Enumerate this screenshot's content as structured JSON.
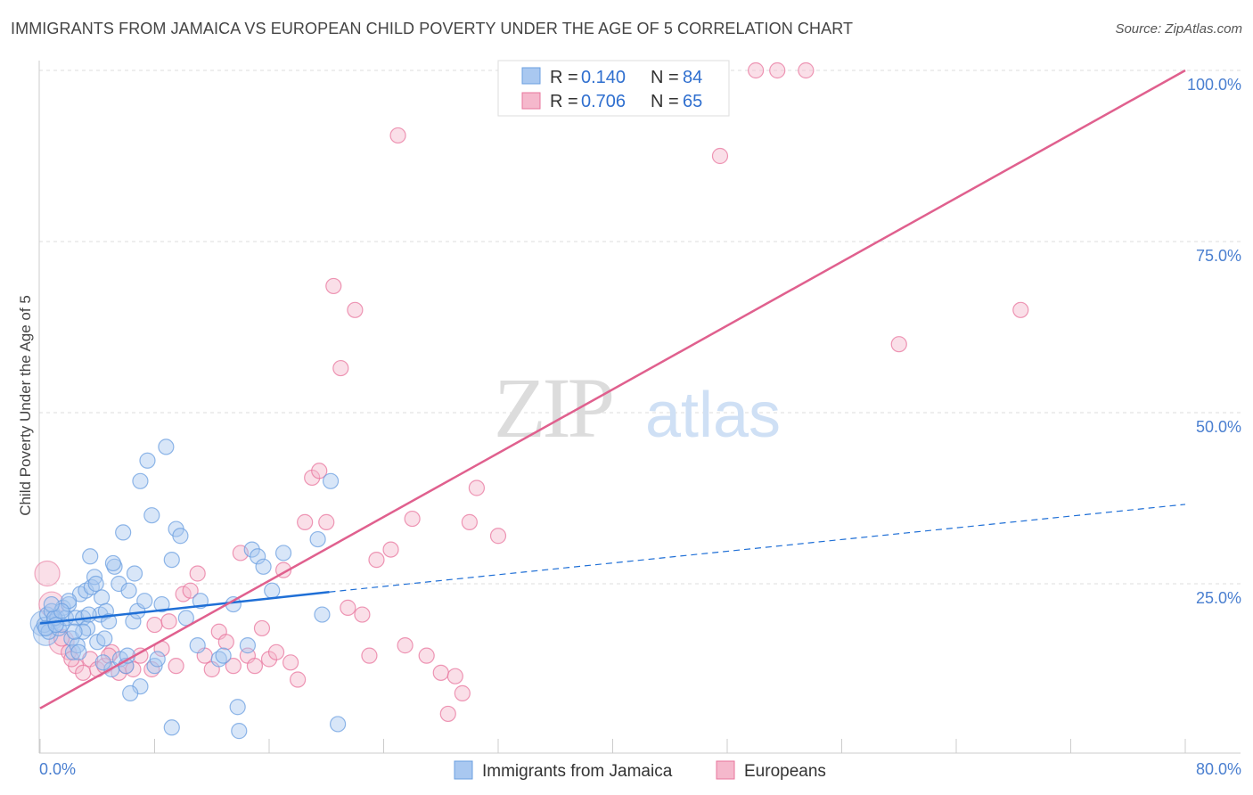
{
  "title": "IMMIGRANTS FROM JAMAICA VS EUROPEAN CHILD POVERTY UNDER THE AGE OF 5 CORRELATION CHART",
  "source": "Source: ZipAtlas.com",
  "watermark": {
    "zip": "ZIP",
    "atlas": "atlas"
  },
  "colors": {
    "blue": "#6b9fe0",
    "blue_fill": "#a9c8f0",
    "pink": "#e8769d",
    "pink_fill": "#f5b8cc",
    "blue_line": "#1f6fd6",
    "pink_line": "#e0608e",
    "axis_text": "#4a7fd0"
  },
  "legend": {
    "series": [
      {
        "r_label": "R =",
        "r_value": "0.140",
        "n_label": "N =",
        "n_value": "84"
      },
      {
        "r_label": "R =",
        "r_value": "0.706",
        "n_label": "N =",
        "n_value": "65"
      }
    ]
  },
  "chart_data": {
    "type": "scatter",
    "xlabel": "",
    "ylabel": "Child Poverty Under the Age of 5",
    "xlim": [
      0,
      80
    ],
    "ylim": [
      0,
      102
    ],
    "x_tick_labels": [
      "0.0%",
      "80.0%"
    ],
    "y_tick_labels": [
      "25.0%",
      "50.0%",
      "75.0%",
      "100.0%"
    ],
    "y_ticks": [
      25,
      50,
      75,
      100
    ],
    "series": [
      {
        "name": "Immigrants from Jamaica",
        "color": "blue",
        "trend": {
          "x0": 0,
          "y0": 19.2,
          "x1": 20.2,
          "y1": 23.8,
          "dash_to_x": 80,
          "dash_to_y": 36.6
        },
        "points": [
          [
            0.3,
            19
          ],
          [
            0.5,
            20.5
          ],
          [
            0.6,
            18
          ],
          [
            0.8,
            21
          ],
          [
            1,
            19.5
          ],
          [
            1.2,
            20
          ],
          [
            1.3,
            18.5
          ],
          [
            1.5,
            19
          ],
          [
            1.6,
            21.5
          ],
          [
            1.8,
            20
          ],
          [
            2,
            22
          ],
          [
            2.2,
            17
          ],
          [
            2.3,
            15
          ],
          [
            2.5,
            20
          ],
          [
            2.6,
            16
          ],
          [
            2.8,
            23.5
          ],
          [
            3,
            20
          ],
          [
            3.2,
            24
          ],
          [
            3.3,
            18.5
          ],
          [
            3.5,
            29
          ],
          [
            3.6,
            24.5
          ],
          [
            3.8,
            26
          ],
          [
            4,
            16.5
          ],
          [
            4.2,
            20.5
          ],
          [
            4.3,
            23
          ],
          [
            4.5,
            17
          ],
          [
            4.6,
            21
          ],
          [
            4.8,
            19.5
          ],
          [
            5,
            12.5
          ],
          [
            5.2,
            27.5
          ],
          [
            5.5,
            25
          ],
          [
            5.6,
            14
          ],
          [
            5.8,
            32.5
          ],
          [
            6,
            13
          ],
          [
            6.2,
            24
          ],
          [
            6.5,
            19.5
          ],
          [
            6.6,
            26.5
          ],
          [
            6.8,
            21
          ],
          [
            7,
            40
          ],
          [
            7.3,
            22.5
          ],
          [
            7.5,
            43
          ],
          [
            7.8,
            35
          ],
          [
            8,
            13
          ],
          [
            8.2,
            14
          ],
          [
            8.5,
            22
          ],
          [
            8.8,
            45
          ],
          [
            9.2,
            28.5
          ],
          [
            9.5,
            33
          ],
          [
            9.8,
            32
          ],
          [
            10.2,
            20
          ],
          [
            11,
            16
          ],
          [
            11.2,
            22.5
          ],
          [
            12.5,
            14
          ],
          [
            12.8,
            14.5
          ],
          [
            13.5,
            22
          ],
          [
            13.8,
            7
          ],
          [
            14.5,
            16
          ],
          [
            14.8,
            30
          ],
          [
            15.2,
            29
          ],
          [
            15.6,
            27.5
          ],
          [
            16.2,
            24
          ],
          [
            17,
            29.5
          ],
          [
            19.4,
            31.5
          ],
          [
            19.7,
            20.5
          ],
          [
            20.3,
            40
          ],
          [
            20.8,
            4.5
          ],
          [
            9.2,
            4
          ],
          [
            13.9,
            3.5
          ],
          [
            7,
            10
          ],
          [
            6.3,
            9
          ],
          [
            1,
            20
          ],
          [
            2,
            22.5
          ],
          [
            3,
            18
          ],
          [
            0.4,
            18.5
          ],
          [
            1.5,
            21
          ],
          [
            2.7,
            15
          ],
          [
            3.9,
            25
          ],
          [
            5.1,
            28
          ],
          [
            4.4,
            13.5
          ],
          [
            6.1,
            14.5
          ],
          [
            0.8,
            22
          ],
          [
            1.1,
            19
          ],
          [
            2.4,
            18
          ],
          [
            3.4,
            20.5
          ]
        ],
        "large_points": [
          [
            0.2,
            19.2
          ],
          [
            0.4,
            17.8
          ]
        ]
      },
      {
        "name": "Europeans",
        "color": "pink",
        "trend": {
          "x0": 0,
          "y0": 6.8,
          "x1": 80,
          "y1": 100
        },
        "points": [
          [
            1.5,
            17
          ],
          [
            2,
            15
          ],
          [
            2.5,
            13
          ],
          [
            3,
            12
          ],
          [
            3.5,
            14
          ],
          [
            4,
            12.5
          ],
          [
            4.5,
            13
          ],
          [
            5,
            15
          ],
          [
            5.5,
            12
          ],
          [
            6,
            13
          ],
          [
            6.5,
            12.5
          ],
          [
            7,
            14.5
          ],
          [
            8,
            19
          ],
          [
            8.5,
            15.5
          ],
          [
            9,
            19.5
          ],
          [
            9.5,
            13
          ],
          [
            10,
            23.5
          ],
          [
            10.5,
            24
          ],
          [
            11,
            26.5
          ],
          [
            12,
            12.5
          ],
          [
            12.5,
            18
          ],
          [
            13,
            16.5
          ],
          [
            13.5,
            13
          ],
          [
            14,
            29.5
          ],
          [
            14.5,
            14.5
          ],
          [
            15,
            13
          ],
          [
            15.5,
            18.5
          ],
          [
            16,
            14
          ],
          [
            16.5,
            15
          ],
          [
            17,
            27
          ],
          [
            17.5,
            13.5
          ],
          [
            18,
            11
          ],
          [
            18.5,
            34
          ],
          [
            19,
            40.5
          ],
          [
            19.5,
            41.5
          ],
          [
            20,
            34
          ],
          [
            20.5,
            68.5
          ],
          [
            21,
            56.5
          ],
          [
            21.5,
            21.5
          ],
          [
            22,
            65
          ],
          [
            22.5,
            20.5
          ],
          [
            23,
            14.5
          ],
          [
            23.5,
            28.5
          ],
          [
            24.5,
            30
          ],
          [
            25,
            90.5
          ],
          [
            25.5,
            16
          ],
          [
            26,
            34.5
          ],
          [
            27,
            14.5
          ],
          [
            28,
            12
          ],
          [
            29,
            11.5
          ],
          [
            29.5,
            9
          ],
          [
            30,
            34
          ],
          [
            30.5,
            39
          ],
          [
            28.5,
            6
          ],
          [
            32,
            32
          ],
          [
            47.5,
            87.5
          ],
          [
            50,
            100
          ],
          [
            51.5,
            100
          ],
          [
            53.5,
            100
          ],
          [
            60,
            60
          ],
          [
            68.5,
            65
          ],
          [
            2.2,
            14
          ],
          [
            4.8,
            14.5
          ],
          [
            7.8,
            12.5
          ],
          [
            11.5,
            14.5
          ]
        ],
        "large_points": [
          [
            0.5,
            26.5
          ],
          [
            0.8,
            22
          ],
          [
            1.5,
            16.5
          ]
        ]
      }
    ]
  },
  "bottom_legend": [
    {
      "label": "Immigrants from Jamaica",
      "color": "blue"
    },
    {
      "label": "Europeans",
      "color": "pink"
    }
  ]
}
